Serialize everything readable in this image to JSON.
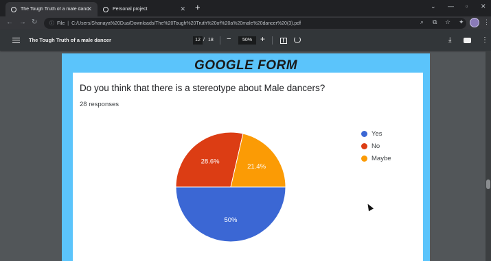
{
  "browser": {
    "tabs": [
      {
        "title": "The Tough Truth of a male dancer"
      },
      {
        "title": "Personal project"
      }
    ],
    "address": {
      "scheme_label": "File",
      "path": "C:/Users/Shanaya%20Dua/Downloads/The%20Tough%20Truth%20of%20a%20male%20dancer%20(3).pdf"
    }
  },
  "pdf_viewer": {
    "document_title": "The Tough Truth of a male dancer",
    "current_page": "12",
    "page_separator": "/",
    "total_pages": "18",
    "zoom": "50%"
  },
  "page": {
    "header": "GOOGLE FORM",
    "question": "Do you think that there is a stereotype about Male dancers?",
    "responses": "28 responses"
  },
  "chart_data": {
    "type": "pie",
    "title": "",
    "slices": [
      {
        "label": "Yes",
        "value": 50,
        "display": "50%",
        "color": "#3b67d4"
      },
      {
        "label": "No",
        "value": 28.6,
        "display": "28.6%",
        "color": "#dc3d14"
      },
      {
        "label": "Maybe",
        "value": 21.4,
        "display": "21.4%",
        "color": "#fb9b05"
      }
    ],
    "legend_position": "right"
  },
  "colors": {
    "page_background": "#5bc4fb",
    "viewer_background": "#525659"
  }
}
